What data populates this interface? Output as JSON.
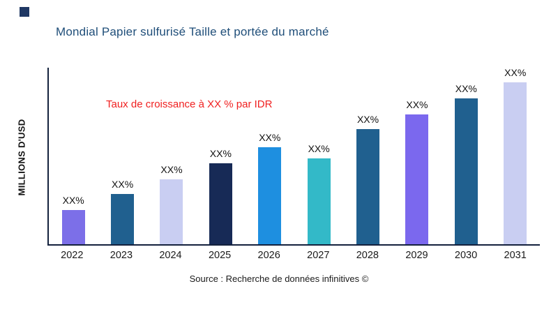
{
  "chart_data": {
    "type": "bar",
    "title": "Mondial Papier sulfurisé Taille et portée du marché",
    "ylabel": "MILLIONS D'USD",
    "xlabel": "",
    "annotation": "Taux de croissance à XX % par IDR",
    "source": "Source : Recherche de données infinitives ©",
    "categories": [
      "2022",
      "2023",
      "2024",
      "2025",
      "2026",
      "2027",
      "2028",
      "2029",
      "2030",
      "2031"
    ],
    "values": [
      21,
      31,
      40,
      50,
      60,
      53,
      71,
      80,
      90,
      100
    ],
    "value_labels": [
      "XX%",
      "XX%",
      "XX%",
      "XX%",
      "XX%",
      "XX%",
      "XX%",
      "XX%",
      "XX%",
      "XX%"
    ],
    "bar_colors": [
      "#7c6fe8",
      "#20608f",
      "#c9cef2",
      "#172a56",
      "#1e8fe0",
      "#33b9c8",
      "#20608f",
      "#7b68ee",
      "#20608f",
      "#c9cef2"
    ],
    "ylim": [
      0,
      100
    ],
    "grid": false,
    "legend": "none"
  },
  "colors": {
    "title": "#1f4e79",
    "annotation": "#f02020",
    "axis": "#14213d",
    "logo": "#1f3864"
  }
}
